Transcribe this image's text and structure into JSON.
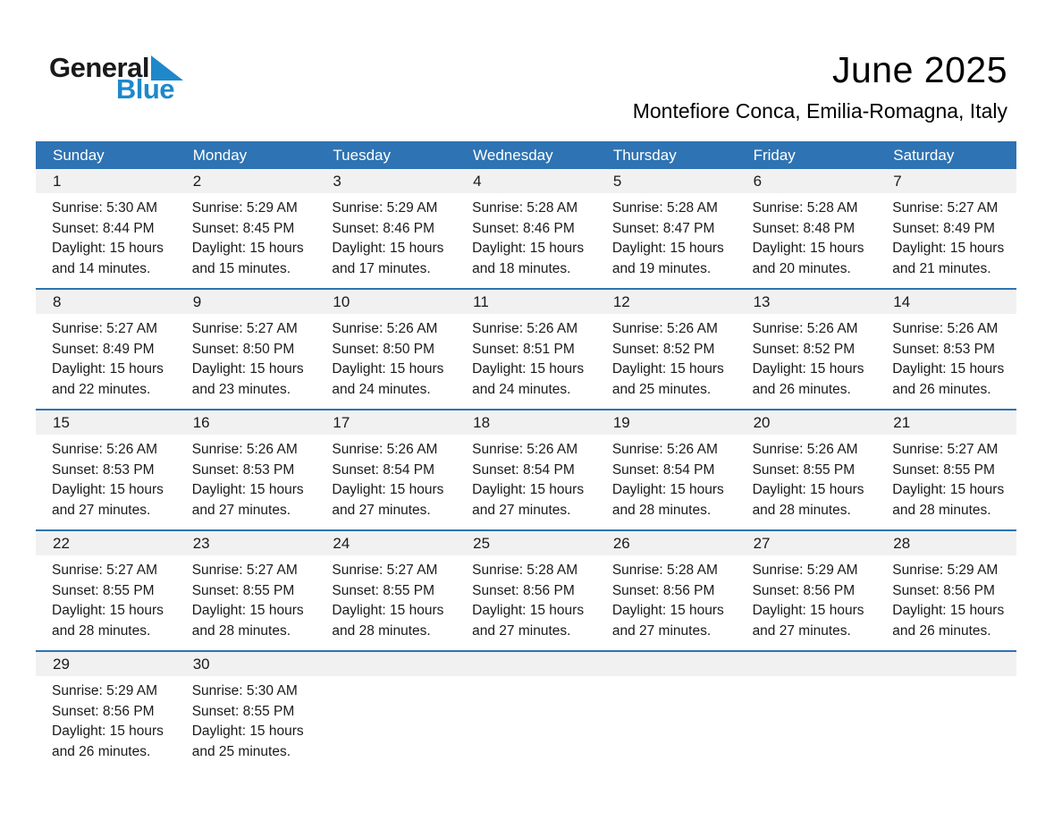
{
  "colors": {
    "header_blue": "#2E73B3",
    "band_gray": "#F1F1F1",
    "logo_blue": "#1E88CB"
  },
  "logo": {
    "line1": "General",
    "line2": "Blue",
    "triangle_icon": "blue-right-triangle"
  },
  "header": {
    "title": "June 2025",
    "location": "Montefiore Conca, Emilia-Romagna, Italy"
  },
  "weekdays": [
    "Sunday",
    "Monday",
    "Tuesday",
    "Wednesday",
    "Thursday",
    "Friday",
    "Saturday"
  ],
  "weeks": [
    [
      {
        "day": "1",
        "lines": [
          "Sunrise: 5:30 AM",
          "Sunset: 8:44 PM",
          "Daylight: 15 hours",
          "and 14 minutes."
        ]
      },
      {
        "day": "2",
        "lines": [
          "Sunrise: 5:29 AM",
          "Sunset: 8:45 PM",
          "Daylight: 15 hours",
          "and 15 minutes."
        ]
      },
      {
        "day": "3",
        "lines": [
          "Sunrise: 5:29 AM",
          "Sunset: 8:46 PM",
          "Daylight: 15 hours",
          "and 17 minutes."
        ]
      },
      {
        "day": "4",
        "lines": [
          "Sunrise: 5:28 AM",
          "Sunset: 8:46 PM",
          "Daylight: 15 hours",
          "and 18 minutes."
        ]
      },
      {
        "day": "5",
        "lines": [
          "Sunrise: 5:28 AM",
          "Sunset: 8:47 PM",
          "Daylight: 15 hours",
          "and 19 minutes."
        ]
      },
      {
        "day": "6",
        "lines": [
          "Sunrise: 5:28 AM",
          "Sunset: 8:48 PM",
          "Daylight: 15 hours",
          "and 20 minutes."
        ]
      },
      {
        "day": "7",
        "lines": [
          "Sunrise: 5:27 AM",
          "Sunset: 8:49 PM",
          "Daylight: 15 hours",
          "and 21 minutes."
        ]
      }
    ],
    [
      {
        "day": "8",
        "lines": [
          "Sunrise: 5:27 AM",
          "Sunset: 8:49 PM",
          "Daylight: 15 hours",
          "and 22 minutes."
        ]
      },
      {
        "day": "9",
        "lines": [
          "Sunrise: 5:27 AM",
          "Sunset: 8:50 PM",
          "Daylight: 15 hours",
          "and 23 minutes."
        ]
      },
      {
        "day": "10",
        "lines": [
          "Sunrise: 5:26 AM",
          "Sunset: 8:50 PM",
          "Daylight: 15 hours",
          "and 24 minutes."
        ]
      },
      {
        "day": "11",
        "lines": [
          "Sunrise: 5:26 AM",
          "Sunset: 8:51 PM",
          "Daylight: 15 hours",
          "and 24 minutes."
        ]
      },
      {
        "day": "12",
        "lines": [
          "Sunrise: 5:26 AM",
          "Sunset: 8:52 PM",
          "Daylight: 15 hours",
          "and 25 minutes."
        ]
      },
      {
        "day": "13",
        "lines": [
          "Sunrise: 5:26 AM",
          "Sunset: 8:52 PM",
          "Daylight: 15 hours",
          "and 26 minutes."
        ]
      },
      {
        "day": "14",
        "lines": [
          "Sunrise: 5:26 AM",
          "Sunset: 8:53 PM",
          "Daylight: 15 hours",
          "and 26 minutes."
        ]
      }
    ],
    [
      {
        "day": "15",
        "lines": [
          "Sunrise: 5:26 AM",
          "Sunset: 8:53 PM",
          "Daylight: 15 hours",
          "and 27 minutes."
        ]
      },
      {
        "day": "16",
        "lines": [
          "Sunrise: 5:26 AM",
          "Sunset: 8:53 PM",
          "Daylight: 15 hours",
          "and 27 minutes."
        ]
      },
      {
        "day": "17",
        "lines": [
          "Sunrise: 5:26 AM",
          "Sunset: 8:54 PM",
          "Daylight: 15 hours",
          "and 27 minutes."
        ]
      },
      {
        "day": "18",
        "lines": [
          "Sunrise: 5:26 AM",
          "Sunset: 8:54 PM",
          "Daylight: 15 hours",
          "and 27 minutes."
        ]
      },
      {
        "day": "19",
        "lines": [
          "Sunrise: 5:26 AM",
          "Sunset: 8:54 PM",
          "Daylight: 15 hours",
          "and 28 minutes."
        ]
      },
      {
        "day": "20",
        "lines": [
          "Sunrise: 5:26 AM",
          "Sunset: 8:55 PM",
          "Daylight: 15 hours",
          "and 28 minutes."
        ]
      },
      {
        "day": "21",
        "lines": [
          "Sunrise: 5:27 AM",
          "Sunset: 8:55 PM",
          "Daylight: 15 hours",
          "and 28 minutes."
        ]
      }
    ],
    [
      {
        "day": "22",
        "lines": [
          "Sunrise: 5:27 AM",
          "Sunset: 8:55 PM",
          "Daylight: 15 hours",
          "and 28 minutes."
        ]
      },
      {
        "day": "23",
        "lines": [
          "Sunrise: 5:27 AM",
          "Sunset: 8:55 PM",
          "Daylight: 15 hours",
          "and 28 minutes."
        ]
      },
      {
        "day": "24",
        "lines": [
          "Sunrise: 5:27 AM",
          "Sunset: 8:55 PM",
          "Daylight: 15 hours",
          "and 28 minutes."
        ]
      },
      {
        "day": "25",
        "lines": [
          "Sunrise: 5:28 AM",
          "Sunset: 8:56 PM",
          "Daylight: 15 hours",
          "and 27 minutes."
        ]
      },
      {
        "day": "26",
        "lines": [
          "Sunrise: 5:28 AM",
          "Sunset: 8:56 PM",
          "Daylight: 15 hours",
          "and 27 minutes."
        ]
      },
      {
        "day": "27",
        "lines": [
          "Sunrise: 5:29 AM",
          "Sunset: 8:56 PM",
          "Daylight: 15 hours",
          "and 27 minutes."
        ]
      },
      {
        "day": "28",
        "lines": [
          "Sunrise: 5:29 AM",
          "Sunset: 8:56 PM",
          "Daylight: 15 hours",
          "and 26 minutes."
        ]
      }
    ],
    [
      {
        "day": "29",
        "lines": [
          "Sunrise: 5:29 AM",
          "Sunset: 8:56 PM",
          "Daylight: 15 hours",
          "and 26 minutes."
        ]
      },
      {
        "day": "30",
        "lines": [
          "Sunrise: 5:30 AM",
          "Sunset: 8:55 PM",
          "Daylight: 15 hours",
          "and 25 minutes."
        ]
      },
      null,
      null,
      null,
      null,
      null
    ]
  ]
}
